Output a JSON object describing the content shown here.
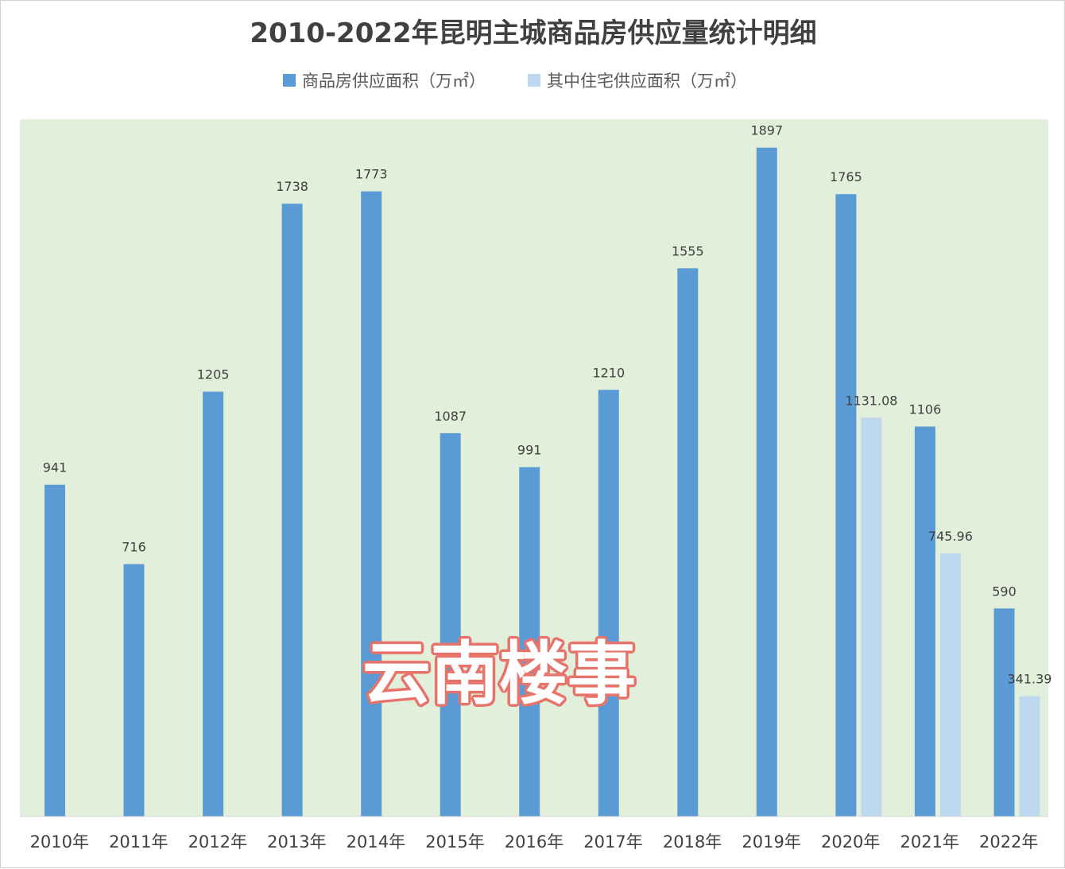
{
  "chart_data": {
    "type": "bar",
    "title": "2010-2022年昆明主城商品房供应量统计明细",
    "categories": [
      "2010年",
      "2011年",
      "2012年",
      "2013年",
      "2014年",
      "2015年",
      "2016年",
      "2017年",
      "2018年",
      "2019年",
      "2020年",
      "2021年",
      "2022年"
    ],
    "series": [
      {
        "name": "商品房供应面积（万㎡）",
        "color": "#5b9bd5",
        "values": [
          941,
          716,
          1205,
          1738,
          1773,
          1087,
          991,
          1210,
          1555,
          1897,
          1765,
          1106,
          590
        ],
        "labels": [
          "941",
          "716",
          "1205",
          "1738",
          "1773",
          "1087",
          "991",
          "1210",
          "1555",
          "1897",
          "1765",
          "1106",
          "590"
        ]
      },
      {
        "name": "其中住宅供应面积（万㎡）",
        "color": "#bdd7ee",
        "values": [
          null,
          null,
          null,
          null,
          null,
          null,
          null,
          null,
          null,
          null,
          1131.08,
          745.96,
          341.39
        ],
        "labels": [
          "",
          "",
          "",
          "",
          "",
          "",
          "",
          "",
          "",
          "",
          "1131.08",
          "745.96",
          "341.39"
        ]
      }
    ],
    "ylim": [
      0,
      2000
    ],
    "grid": false,
    "legend": "top-center",
    "plot_background": "#e2efda"
  },
  "watermark": "云南楼事"
}
